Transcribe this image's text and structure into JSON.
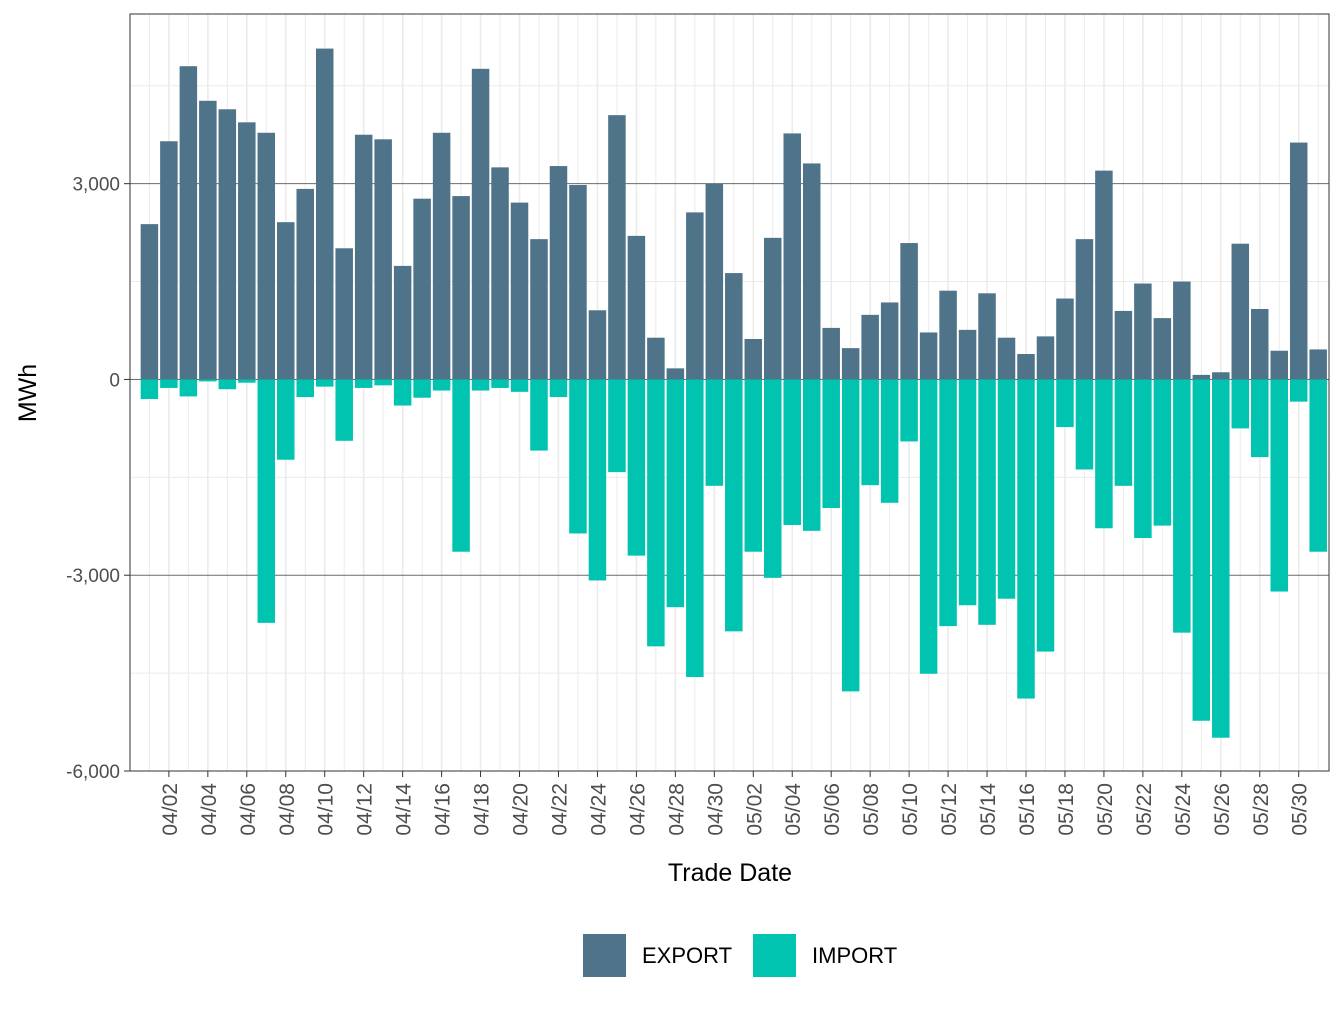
{
  "chart_data": {
    "type": "bar",
    "title": "",
    "xlabel": "Trade Date",
    "ylabel": "MWh",
    "ylim": [
      -6000,
      5600
    ],
    "yticks": [
      -6000,
      -3000,
      0,
      3000
    ],
    "ytick_labels": [
      "-6,000",
      "-3,000",
      "0",
      "3,000"
    ],
    "grid": true,
    "legend_position": "bottom",
    "colors": {
      "EXPORT": "#4f7389",
      "IMPORT": "#00c4b0"
    },
    "categories": [
      "04/01",
      "04/02",
      "04/03",
      "04/04",
      "04/05",
      "04/06",
      "04/07",
      "04/08",
      "04/09",
      "04/10",
      "04/11",
      "04/12",
      "04/13",
      "04/14",
      "04/15",
      "04/16",
      "04/17",
      "04/18",
      "04/19",
      "04/20",
      "04/21",
      "04/22",
      "04/23",
      "04/24",
      "04/25",
      "04/26",
      "04/27",
      "04/28",
      "04/29",
      "04/30",
      "05/01",
      "05/02",
      "05/03",
      "05/04",
      "05/05",
      "05/06",
      "05/07",
      "05/08",
      "05/09",
      "05/10",
      "05/11",
      "05/12",
      "05/13",
      "05/14",
      "05/15",
      "05/16",
      "05/17",
      "05/18",
      "05/19",
      "05/20",
      "05/21",
      "05/22",
      "05/23",
      "05/24",
      "05/25",
      "05/26",
      "05/27",
      "05/28",
      "05/29",
      "05/30",
      "05/31"
    ],
    "tick_labels": [
      "04/02",
      "04/04",
      "04/06",
      "04/08",
      "04/10",
      "04/12",
      "04/14",
      "04/16",
      "04/18",
      "04/20",
      "04/22",
      "04/24",
      "04/26",
      "04/28",
      "04/30",
      "05/02",
      "05/04",
      "05/06",
      "05/08",
      "05/10",
      "05/12",
      "05/14",
      "05/16",
      "05/18",
      "05/20",
      "05/22",
      "05/24",
      "05/26",
      "05/28",
      "05/30"
    ],
    "series": [
      {
        "name": "EXPORT",
        "values": [
          2380,
          3650,
          4800,
          4270,
          4140,
          3940,
          3780,
          2410,
          2920,
          5070,
          2010,
          3750,
          3680,
          1740,
          2770,
          3780,
          2810,
          4760,
          3250,
          2710,
          2150,
          3270,
          2980,
          1060,
          4050,
          2200,
          640,
          170,
          2560,
          3000,
          1630,
          620,
          2170,
          3770,
          3310,
          790,
          480,
          990,
          1180,
          2090,
          720,
          1360,
          760,
          1320,
          640,
          390,
          660,
          1240,
          2150,
          3200,
          1050,
          1470,
          940,
          1500,
          70,
          110,
          2080,
          1080,
          440,
          3630,
          460
        ]
      },
      {
        "name": "IMPORT",
        "values": [
          -300,
          -130,
          -260,
          -30,
          -150,
          -50,
          -3730,
          -1230,
          -270,
          -110,
          -940,
          -130,
          -90,
          -400,
          -280,
          -170,
          -2640,
          -170,
          -130,
          -190,
          -1090,
          -270,
          -2360,
          -3080,
          -1420,
          -2700,
          -4090,
          -3490,
          -4560,
          -1630,
          -3860,
          -2640,
          -3040,
          -2230,
          -2320,
          -1970,
          -4780,
          -1620,
          -1890,
          -950,
          -4510,
          -3780,
          -3460,
          -3760,
          -3360,
          -4890,
          -4170,
          -730,
          -1380,
          -2280,
          -1630,
          -2430,
          -2240,
          -3880,
          -5230,
          -5490,
          -750,
          -1190,
          -3250,
          -340,
          -2640
        ]
      }
    ]
  }
}
